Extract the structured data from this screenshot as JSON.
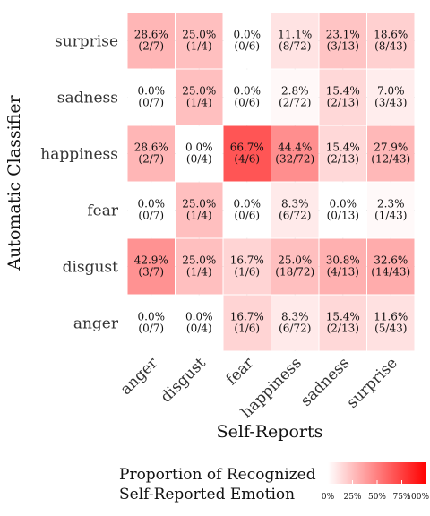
{
  "chart_data": {
    "type": "heatmap",
    "x_categories": [
      "anger",
      "disgust",
      "fear",
      "happiness",
      "sadness",
      "surprise"
    ],
    "y_categories": [
      "anger",
      "disgust",
      "fear",
      "happiness",
      "sadness",
      "surprise"
    ],
    "xlabel": "Self-Reports",
    "ylabel": "Automatic Classifier",
    "cells": {
      "surprise": [
        {
          "pct": "28.6%",
          "count": "(2/7)",
          "value": 28.6
        },
        {
          "pct": "25.0%",
          "count": "(1/4)",
          "value": 25.0
        },
        {
          "pct": "0.0%",
          "count": "(0/6)",
          "value": 0.0
        },
        {
          "pct": "11.1%",
          "count": "(8/72)",
          "value": 11.1
        },
        {
          "pct": "23.1%",
          "count": "(3/13)",
          "value": 23.1
        },
        {
          "pct": "18.6%",
          "count": "(8/43)",
          "value": 18.6
        }
      ],
      "sadness": [
        {
          "pct": "0.0%",
          "count": "(0/7)",
          "value": 0.0
        },
        {
          "pct": "25.0%",
          "count": "(1/4)",
          "value": 25.0
        },
        {
          "pct": "0.0%",
          "count": "(0/6)",
          "value": 0.0
        },
        {
          "pct": "2.8%",
          "count": "(2/72)",
          "value": 2.8
        },
        {
          "pct": "15.4%",
          "count": "(2/13)",
          "value": 15.4
        },
        {
          "pct": "7.0%",
          "count": "(3/43)",
          "value": 7.0
        }
      ],
      "happiness": [
        {
          "pct": "28.6%",
          "count": "(2/7)",
          "value": 28.6
        },
        {
          "pct": "0.0%",
          "count": "(0/4)",
          "value": 0.0
        },
        {
          "pct": "66.7%",
          "count": "(4/6)",
          "value": 66.7
        },
        {
          "pct": "44.4%",
          "count": "(32/72)",
          "value": 44.4
        },
        {
          "pct": "15.4%",
          "count": "(2/13)",
          "value": 15.4
        },
        {
          "pct": "27.9%",
          "count": "(12/43)",
          "value": 27.9
        }
      ],
      "fear": [
        {
          "pct": "0.0%",
          "count": "(0/7)",
          "value": 0.0
        },
        {
          "pct": "25.0%",
          "count": "(1/4)",
          "value": 25.0
        },
        {
          "pct": "0.0%",
          "count": "(0/6)",
          "value": 0.0
        },
        {
          "pct": "8.3%",
          "count": "(6/72)",
          "value": 8.3
        },
        {
          "pct": "0.0%",
          "count": "(0/13)",
          "value": 0.0
        },
        {
          "pct": "2.3%",
          "count": "(1/43)",
          "value": 2.3
        }
      ],
      "disgust": [
        {
          "pct": "42.9%",
          "count": "(3/7)",
          "value": 42.9
        },
        {
          "pct": "25.0%",
          "count": "(1/4)",
          "value": 25.0
        },
        {
          "pct": "16.7%",
          "count": "(1/6)",
          "value": 16.7
        },
        {
          "pct": "25.0%",
          "count": "(18/72)",
          "value": 25.0
        },
        {
          "pct": "30.8%",
          "count": "(4/13)",
          "value": 30.8
        },
        {
          "pct": "32.6%",
          "count": "(14/43)",
          "value": 32.6
        }
      ],
      "anger": [
        {
          "pct": "0.0%",
          "count": "(0/7)",
          "value": 0.0
        },
        {
          "pct": "0.0%",
          "count": "(0/4)",
          "value": 0.0
        },
        {
          "pct": "16.7%",
          "count": "(1/6)",
          "value": 16.7
        },
        {
          "pct": "8.3%",
          "count": "(6/72)",
          "value": 8.3
        },
        {
          "pct": "15.4%",
          "count": "(2/13)",
          "value": 15.4
        },
        {
          "pct": "11.6%",
          "count": "(5/43)",
          "value": 11.6
        }
      ]
    },
    "legend": {
      "title_lines": [
        "Proportion of Recognized",
        "Self-Reported Emotion"
      ],
      "ticks": [
        "0%",
        "25%",
        "50%",
        "75%",
        "100%"
      ],
      "tick_values": [
        0,
        25,
        50,
        75,
        100
      ],
      "color_low": "#ffffff",
      "color_high": "#ff0000"
    },
    "scale": [
      0,
      100
    ],
    "grid": true
  }
}
